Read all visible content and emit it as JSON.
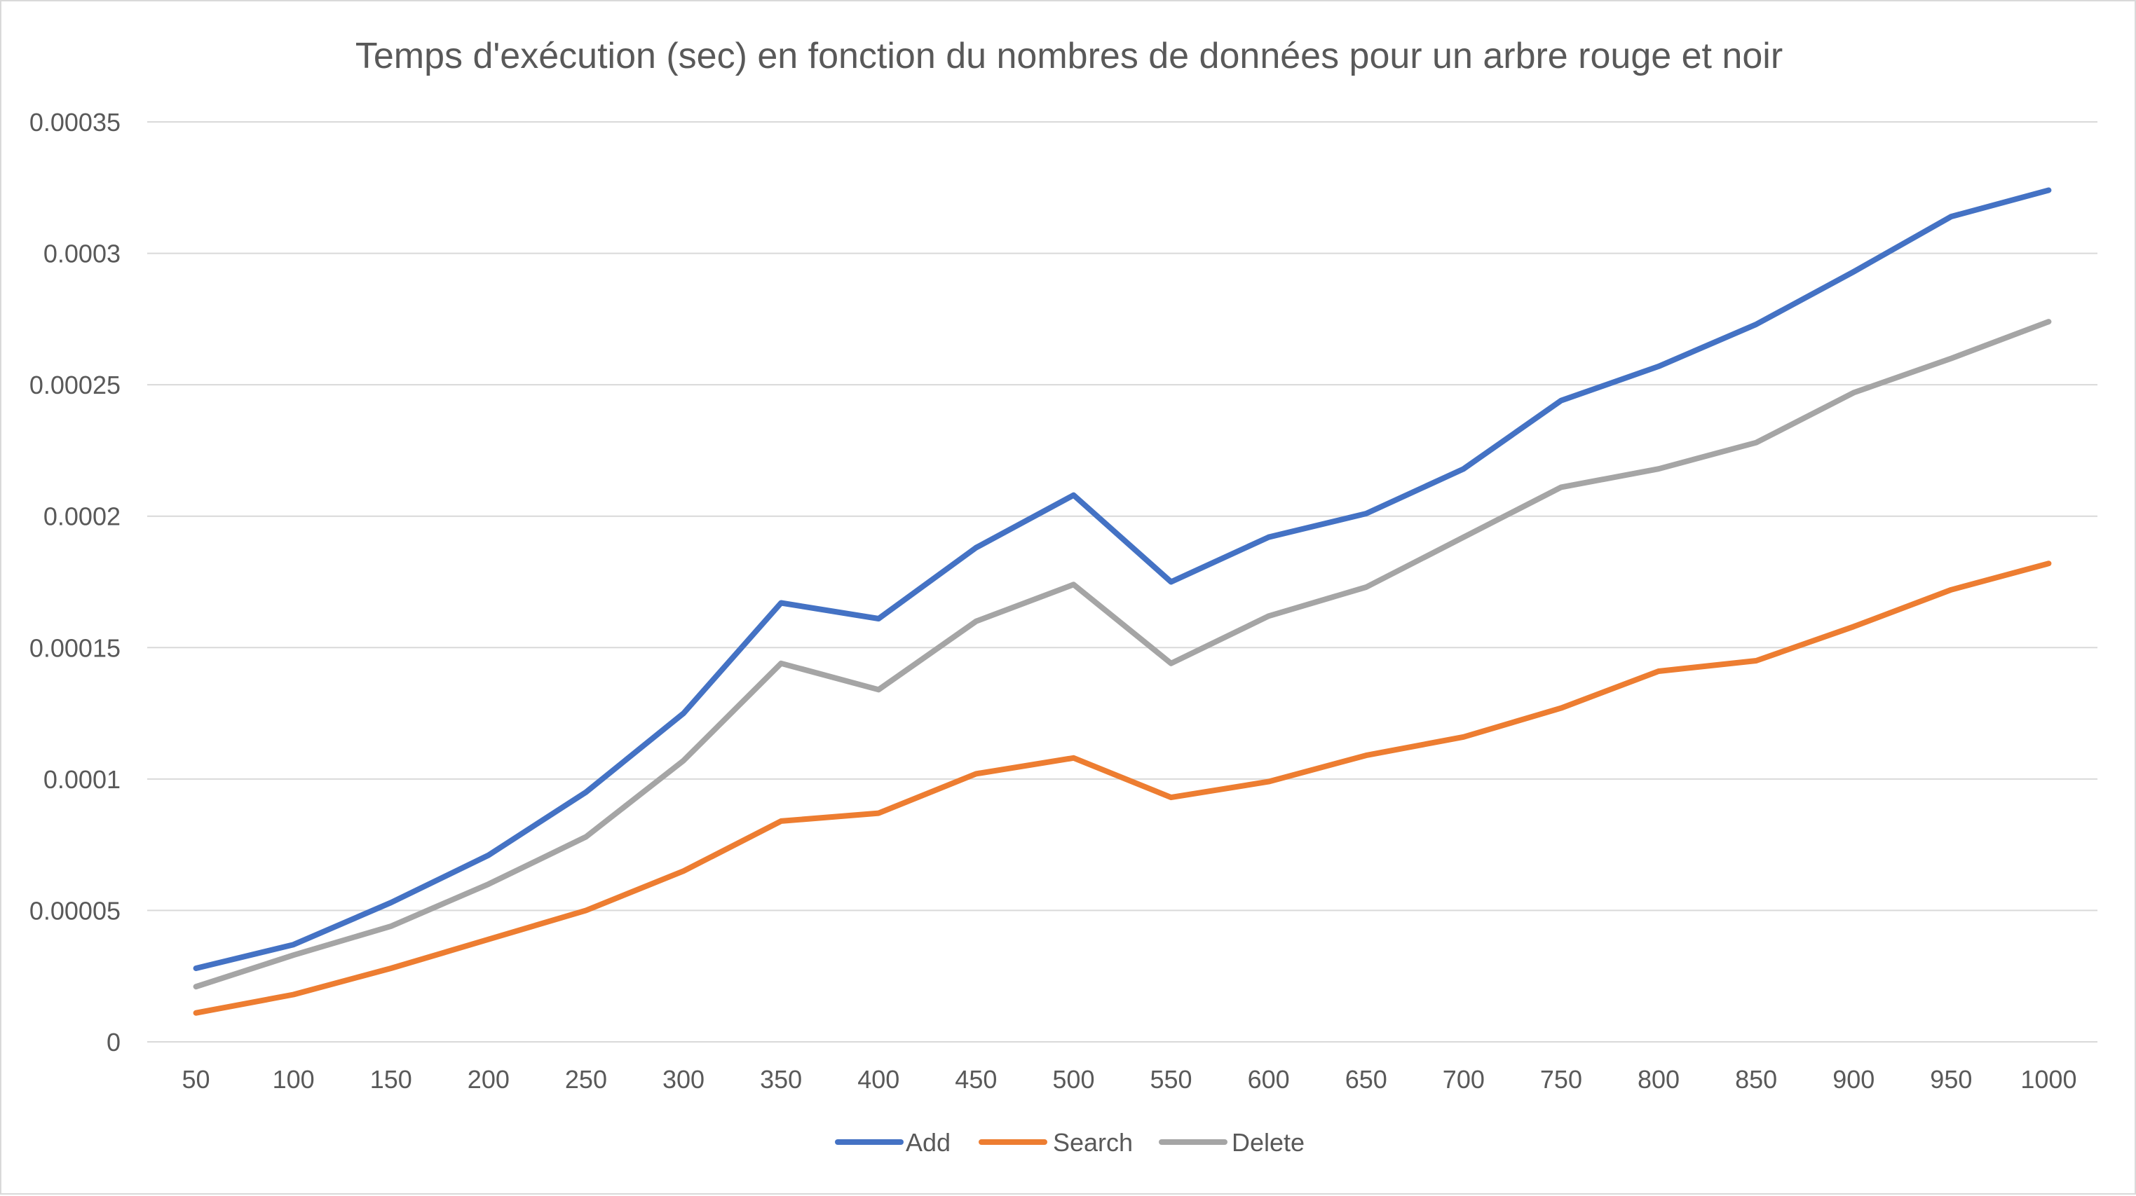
{
  "chart_data": {
    "type": "line",
    "title": "Temps d'exécution (sec) en fonction du nombres de données pour un arbre rouge et noir",
    "xlabel": "",
    "ylabel": "",
    "categories": [
      "50",
      "100",
      "150",
      "200",
      "250",
      "300",
      "350",
      "400",
      "450",
      "500",
      "550",
      "600",
      "650",
      "700",
      "750",
      "800",
      "850",
      "900",
      "950",
      "1000"
    ],
    "ylim": [
      0,
      0.00035
    ],
    "yticks": [
      "0",
      "0.00005",
      "0.0001",
      "0.00015",
      "0.0002",
      "0.00025",
      "0.0003",
      "0.00035"
    ],
    "grid": true,
    "legend_position": "bottom",
    "series": [
      {
        "name": "Add",
        "color": "#4472c4",
        "values": [
          2.8e-05,
          3.7e-05,
          5.3e-05,
          7.1e-05,
          9.5e-05,
          0.000125,
          0.000167,
          0.000161,
          0.000188,
          0.000208,
          0.000175,
          0.000192,
          0.000201,
          0.000218,
          0.000244,
          0.000257,
          0.000273,
          0.000293,
          0.000314,
          0.000324
        ]
      },
      {
        "name": "Search",
        "color": "#ed7d31",
        "values": [
          1.1e-05,
          1.8e-05,
          2.8e-05,
          3.9e-05,
          5e-05,
          6.5e-05,
          8.4e-05,
          8.7e-05,
          0.000102,
          0.000108,
          9.3e-05,
          9.9e-05,
          0.000109,
          0.000116,
          0.000127,
          0.000141,
          0.000145,
          0.000158,
          0.000172,
          0.000182
        ]
      },
      {
        "name": "Delete",
        "color": "#a5a5a5",
        "values": [
          2.1e-05,
          3.3e-05,
          4.4e-05,
          6e-05,
          7.8e-05,
          0.000107,
          0.000144,
          0.000134,
          0.00016,
          0.000174,
          0.000144,
          0.000162,
          0.000173,
          0.000192,
          0.000211,
          0.000218,
          0.000228,
          0.000247,
          0.00026,
          0.000274
        ]
      }
    ]
  }
}
